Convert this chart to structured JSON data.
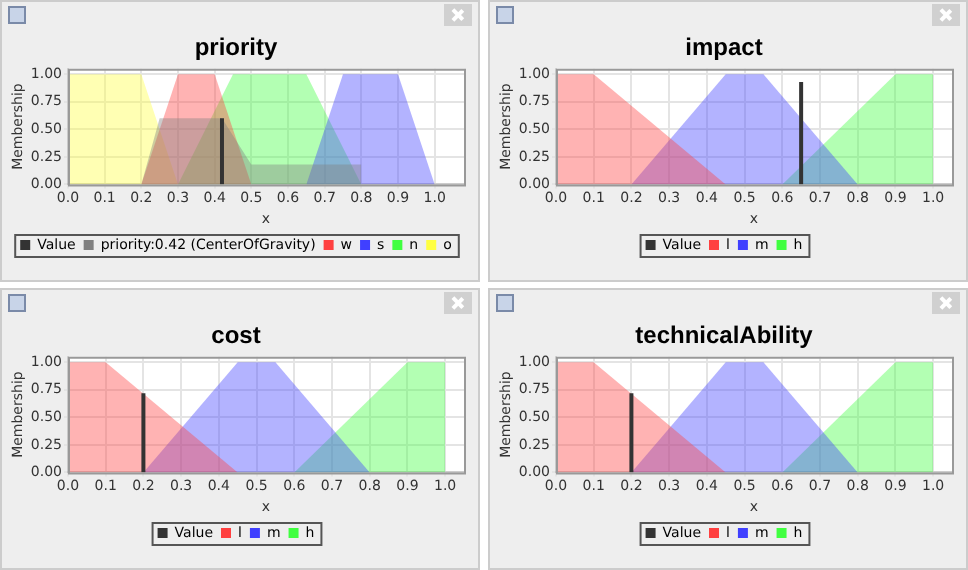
{
  "chart_data": [
    {
      "type": "area",
      "title": "priority",
      "xlabel": "x",
      "ylabel": "Membership",
      "xlim": [
        0,
        1.08
      ],
      "xticks": [
        {
          "value": 0,
          "label": "0.0"
        },
        {
          "value": 0.1,
          "label": "0.1"
        },
        {
          "value": 0.2,
          "label": "0.2"
        },
        {
          "value": 0.3,
          "label": "0.3"
        },
        {
          "value": 0.4,
          "label": "0.4"
        },
        {
          "value": 0.5,
          "label": "0.5"
        },
        {
          "value": 0.6,
          "label": "0.6"
        },
        {
          "value": 0.7,
          "label": "0.7"
        },
        {
          "value": 0.8,
          "label": "0.8"
        },
        {
          "value": 0.9,
          "label": "0.9"
        },
        {
          "value": 1,
          "label": "1.0"
        }
      ],
      "ylim": [
        0,
        1.05
      ],
      "yticks": [
        {
          "value": 0,
          "label": "0.00"
        },
        {
          "value": 0.25,
          "label": "0.25"
        },
        {
          "value": 0.5,
          "label": "0.50"
        },
        {
          "value": 0.75,
          "label": "0.75"
        },
        {
          "value": 1,
          "label": "1.00"
        }
      ],
      "grid": true,
      "legend": "bottom",
      "series": [
        {
          "name": "Value",
          "type": "line",
          "color": "#333333",
          "x": [
            0.42,
            0.42
          ],
          "values": [
            0,
            0.6
          ]
        },
        {
          "name": "priority:0.42 (CenterOfGravity)",
          "color": "#808080",
          "x": [
            0.2,
            0.25,
            0.42,
            0.5,
            0.8,
            0.8
          ],
          "values": [
            0,
            0.6,
            0.6,
            0.18,
            0.18,
            0
          ]
        },
        {
          "name": "w",
          "color": "#ff4040",
          "x": [
            0.2,
            0.3,
            0.4,
            0.5
          ],
          "values": [
            0,
            1,
            1,
            0
          ]
        },
        {
          "name": "s",
          "color": "#4040ff",
          "x": [
            0.65,
            0.75,
            0.9,
            1.0
          ],
          "values": [
            0,
            1,
            1,
            0
          ]
        },
        {
          "name": "n",
          "color": "#40ff40",
          "x": [
            0.3,
            0.45,
            0.65,
            0.8
          ],
          "values": [
            0,
            1,
            1,
            0
          ]
        },
        {
          "name": "o",
          "color": "#ffff40",
          "x": [
            0,
            0.2,
            0.3
          ],
          "values": [
            1,
            1,
            0
          ]
        }
      ]
    },
    {
      "type": "area",
      "title": "impact",
      "xlabel": "x",
      "ylabel": "Membership",
      "xlim": [
        0,
        1.05
      ],
      "xticks": [
        {
          "value": 0,
          "label": "0.0"
        },
        {
          "value": 0.1,
          "label": "0.1"
        },
        {
          "value": 0.2,
          "label": "0.2"
        },
        {
          "value": 0.3,
          "label": "0.3"
        },
        {
          "value": 0.4,
          "label": "0.4"
        },
        {
          "value": 0.5,
          "label": "0.5"
        },
        {
          "value": 0.6,
          "label": "0.6"
        },
        {
          "value": 0.7,
          "label": "0.7"
        },
        {
          "value": 0.8,
          "label": "0.8"
        },
        {
          "value": 0.9,
          "label": "0.9"
        },
        {
          "value": 1,
          "label": "1.0"
        }
      ],
      "ylim": [
        0,
        1.05
      ],
      "yticks": [
        {
          "value": 0,
          "label": "0.00"
        },
        {
          "value": 0.25,
          "label": "0.25"
        },
        {
          "value": 0.5,
          "label": "0.50"
        },
        {
          "value": 0.75,
          "label": "0.75"
        },
        {
          "value": 1,
          "label": "1.00"
        }
      ],
      "grid": true,
      "legend": "bottom",
      "series": [
        {
          "name": "Value",
          "type": "line",
          "color": "#333333",
          "x": [
            0.65,
            0.65
          ],
          "values": [
            0,
            0.93
          ]
        },
        {
          "name": "l",
          "color": "#ff4040",
          "x": [
            0,
            0.1,
            0.45
          ],
          "values": [
            1,
            1,
            0
          ]
        },
        {
          "name": "m",
          "color": "#4040ff",
          "x": [
            0.2,
            0.45,
            0.55,
            0.8
          ],
          "values": [
            0,
            1,
            1,
            0
          ]
        },
        {
          "name": "h",
          "color": "#40ff40",
          "x": [
            0.6,
            0.9,
            1.0
          ],
          "values": [
            0,
            1,
            1
          ]
        }
      ]
    },
    {
      "type": "area",
      "title": "cost",
      "xlabel": "x",
      "ylabel": "Membership",
      "xlim": [
        0,
        1.05
      ],
      "xticks": [
        {
          "value": 0,
          "label": "0.0"
        },
        {
          "value": 0.1,
          "label": "0.1"
        },
        {
          "value": 0.2,
          "label": "0.2"
        },
        {
          "value": 0.3,
          "label": "0.3"
        },
        {
          "value": 0.4,
          "label": "0.4"
        },
        {
          "value": 0.5,
          "label": "0.5"
        },
        {
          "value": 0.6,
          "label": "0.6"
        },
        {
          "value": 0.7,
          "label": "0.7"
        },
        {
          "value": 0.8,
          "label": "0.8"
        },
        {
          "value": 0.9,
          "label": "0.9"
        },
        {
          "value": 1,
          "label": "1.0"
        }
      ],
      "ylim": [
        0,
        1.05
      ],
      "yticks": [
        {
          "value": 0,
          "label": "0.00"
        },
        {
          "value": 0.25,
          "label": "0.25"
        },
        {
          "value": 0.5,
          "label": "0.50"
        },
        {
          "value": 0.75,
          "label": "0.75"
        },
        {
          "value": 1,
          "label": "1.00"
        }
      ],
      "grid": true,
      "legend": "bottom",
      "series": [
        {
          "name": "Value",
          "type": "line",
          "color": "#333333",
          "x": [
            0.2,
            0.2
          ],
          "values": [
            0,
            0.72
          ]
        },
        {
          "name": "l",
          "color": "#ff4040",
          "x": [
            0,
            0.1,
            0.45
          ],
          "values": [
            1,
            1,
            0
          ]
        },
        {
          "name": "m",
          "color": "#4040ff",
          "x": [
            0.2,
            0.45,
            0.55,
            0.8
          ],
          "values": [
            0,
            1,
            1,
            0
          ]
        },
        {
          "name": "h",
          "color": "#40ff40",
          "x": [
            0.6,
            0.9,
            1.0
          ],
          "values": [
            0,
            1,
            1
          ]
        }
      ]
    },
    {
      "type": "area",
      "title": "technicalAbility",
      "xlabel": "x",
      "ylabel": "Membership",
      "xlim": [
        0,
        1.05
      ],
      "xticks": [
        {
          "value": 0,
          "label": "0.0"
        },
        {
          "value": 0.1,
          "label": "0.1"
        },
        {
          "value": 0.2,
          "label": "0.2"
        },
        {
          "value": 0.3,
          "label": "0.3"
        },
        {
          "value": 0.4,
          "label": "0.4"
        },
        {
          "value": 0.5,
          "label": "0.5"
        },
        {
          "value": 0.6,
          "label": "0.6"
        },
        {
          "value": 0.7,
          "label": "0.7"
        },
        {
          "value": 0.8,
          "label": "0.8"
        },
        {
          "value": 0.9,
          "label": "0.9"
        },
        {
          "value": 1,
          "label": "1.0"
        }
      ],
      "ylim": [
        0,
        1.05
      ],
      "yticks": [
        {
          "value": 0,
          "label": "0.00"
        },
        {
          "value": 0.25,
          "label": "0.25"
        },
        {
          "value": 0.5,
          "label": "0.50"
        },
        {
          "value": 0.75,
          "label": "0.75"
        },
        {
          "value": 1,
          "label": "1.00"
        }
      ],
      "grid": true,
      "legend": "bottom",
      "series": [
        {
          "name": "Value",
          "type": "line",
          "color": "#333333",
          "x": [
            0.2,
            0.2
          ],
          "values": [
            0,
            0.72
          ]
        },
        {
          "name": "l",
          "color": "#ff4040",
          "x": [
            0,
            0.1,
            0.45
          ],
          "values": [
            1,
            1,
            0
          ]
        },
        {
          "name": "m",
          "color": "#4040ff",
          "x": [
            0.2,
            0.45,
            0.55,
            0.8
          ],
          "values": [
            0,
            1,
            1,
            0
          ]
        },
        {
          "name": "h",
          "color": "#40ff40",
          "x": [
            0.6,
            0.9,
            1.0
          ],
          "values": [
            0,
            1,
            1
          ]
        }
      ]
    }
  ]
}
